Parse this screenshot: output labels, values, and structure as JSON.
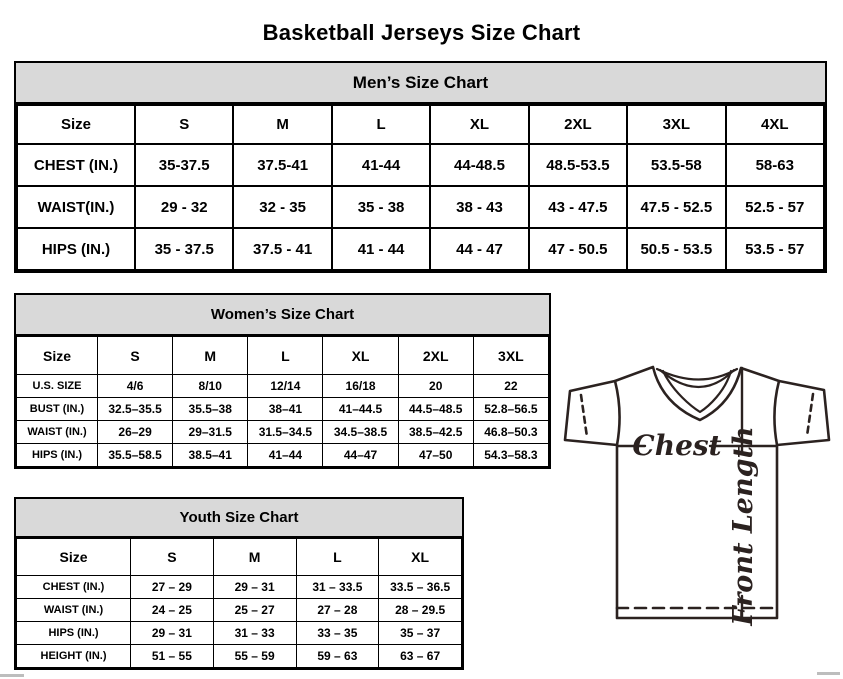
{
  "title": "Basketball Jerseys Size Chart",
  "tables": {
    "men": {
      "title": "Men’s Size Chart",
      "columns": [
        "Size",
        "S",
        "M",
        "L",
        "XL",
        "2XL",
        "3XL",
        "4XL"
      ],
      "rows": [
        {
          "label": "CHEST (IN.)",
          "values": [
            "35-37.5",
            "37.5-41",
            "41-44",
            "44-48.5",
            "48.5-53.5",
            "53.5-58",
            "58-63"
          ]
        },
        {
          "label": "WAIST(IN.)",
          "values": [
            "29 - 32",
            "32 - 35",
            "35 - 38",
            "38 - 43",
            "43 - 47.5",
            "47.5 - 52.5",
            "52.5 - 57"
          ]
        },
        {
          "label": "HIPS (IN.)",
          "values": [
            "35 - 37.5",
            "37.5 - 41",
            "41 - 44",
            "44 - 47",
            "47 - 50.5",
            "50.5 - 53.5",
            "53.5 - 57"
          ]
        }
      ]
    },
    "women": {
      "title": "Women’s Size Chart",
      "columns": [
        "Size",
        "S",
        "M",
        "L",
        "XL",
        "2XL",
        "3XL"
      ],
      "rows": [
        {
          "label": "U.S. SIZE",
          "values": [
            "4/6",
            "8/10",
            "12/14",
            "16/18",
            "20",
            "22"
          ]
        },
        {
          "label": "BUST (IN.)",
          "values": [
            "32.5–35.5",
            "35.5–38",
            "38–41",
            "41–44.5",
            "44.5–48.5",
            "52.8–56.5"
          ]
        },
        {
          "label": "WAIST (IN.)",
          "values": [
            "26–29",
            "29–31.5",
            "31.5–34.5",
            "34.5–38.5",
            "38.5–42.5",
            "46.8–50.3"
          ]
        },
        {
          "label": "HIPS (IN.)",
          "values": [
            "35.5–58.5",
            "38.5–41",
            "41–44",
            "44–47",
            "47–50",
            "54.3–58.3"
          ]
        }
      ]
    },
    "youth": {
      "title": "Youth Size Chart",
      "columns": [
        "Size",
        "S",
        "M",
        "L",
        "XL"
      ],
      "rows": [
        {
          "label": "CHEST (IN.)",
          "values": [
            "27 – 29",
            "29 – 31",
            "31 – 33.5",
            "33.5 – 36.5"
          ]
        },
        {
          "label": "WAIST (IN.)",
          "values": [
            "24 – 25",
            "25 – 27",
            "27 – 28",
            "28 – 29.5"
          ]
        },
        {
          "label": "HIPS (IN.)",
          "values": [
            "29 – 31",
            "31 – 33",
            "33 – 35",
            "35 – 37"
          ]
        },
        {
          "label": "HEIGHT (IN.)",
          "values": [
            "51 – 55",
            "55 – 59",
            "59 – 63",
            "63 – 67"
          ]
        }
      ]
    }
  },
  "diagram": {
    "chest_label": "Chest",
    "front_length_label": "Front Length"
  },
  "colors": {
    "header_bg": "#d9d9d9",
    "table_border": "#000000",
    "diagram_stroke": "#2b2220"
  }
}
